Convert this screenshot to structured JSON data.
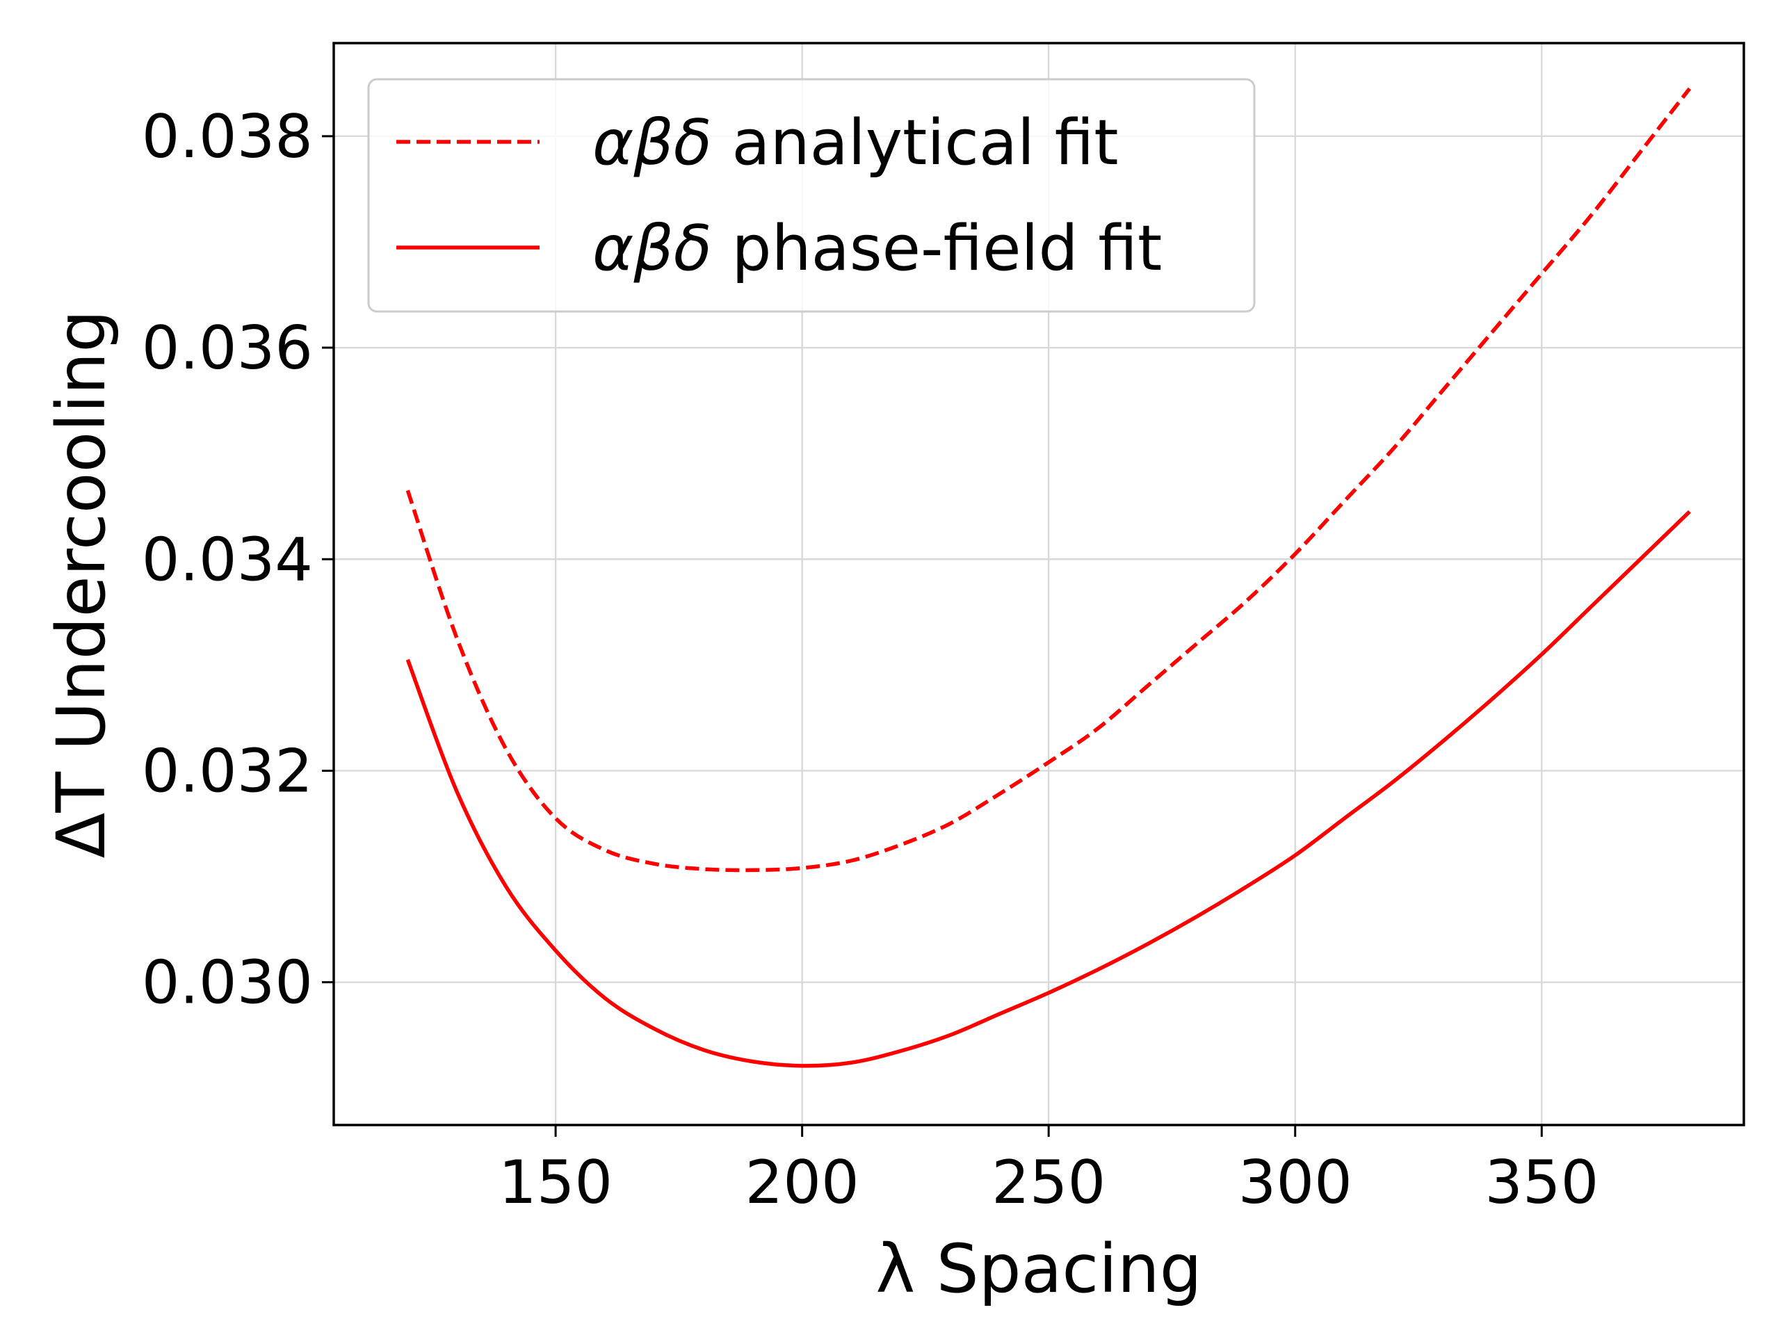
{
  "chart_data": {
    "type": "line",
    "xlabel": "λ Spacing",
    "ylabel": "ΔT Undercooling",
    "xlim": [
      105,
      391
    ],
    "ylim": [
      0.02865,
      0.03888
    ],
    "xticks": [
      "150",
      "200",
      "250",
      "300",
      "350"
    ],
    "yticks": [
      "0.030",
      "0.032",
      "0.034",
      "0.036",
      "0.038"
    ],
    "grid": true,
    "legend_position": "upper-left",
    "color": "#ff0000",
    "series": [
      {
        "name": "αβδ analytical fit",
        "greek": "αβδ",
        "label_rest": " analytical fit",
        "style": "dashed",
        "x": [
          120,
          130,
          140,
          150,
          160,
          170,
          180,
          190,
          200,
          210,
          220,
          230,
          240,
          250,
          260,
          270,
          280,
          290,
          300,
          310,
          320,
          330,
          340,
          350,
          360,
          370,
          380
        ],
        "y": [
          0.03465,
          0.03325,
          0.0322,
          0.03155,
          0.03125,
          0.03112,
          0.03107,
          0.03106,
          0.03108,
          0.03115,
          0.0313,
          0.0315,
          0.03178,
          0.03208,
          0.0324,
          0.0328,
          0.0332,
          0.0336,
          0.03405,
          0.03455,
          0.03505,
          0.0356,
          0.03615,
          0.0367,
          0.03725,
          0.03785,
          0.03845
        ]
      },
      {
        "name": "αβδ phase-field fit",
        "greek": "αβδ",
        "label_rest": " phase-field fit",
        "style": "solid",
        "x": [
          120,
          130,
          140,
          150,
          160,
          170,
          180,
          190,
          200,
          210,
          220,
          230,
          240,
          250,
          260,
          270,
          280,
          290,
          300,
          310,
          320,
          330,
          340,
          350,
          360,
          370,
          380
        ],
        "y": [
          0.03305,
          0.0318,
          0.0309,
          0.0303,
          0.02985,
          0.02956,
          0.02936,
          0.02925,
          0.02921,
          0.02924,
          0.02935,
          0.0295,
          0.0297,
          0.0299,
          0.03012,
          0.03036,
          0.03062,
          0.0309,
          0.0312,
          0.03155,
          0.0319,
          0.03228,
          0.03268,
          0.0331,
          0.03355,
          0.034,
          0.03445
        ]
      }
    ]
  }
}
